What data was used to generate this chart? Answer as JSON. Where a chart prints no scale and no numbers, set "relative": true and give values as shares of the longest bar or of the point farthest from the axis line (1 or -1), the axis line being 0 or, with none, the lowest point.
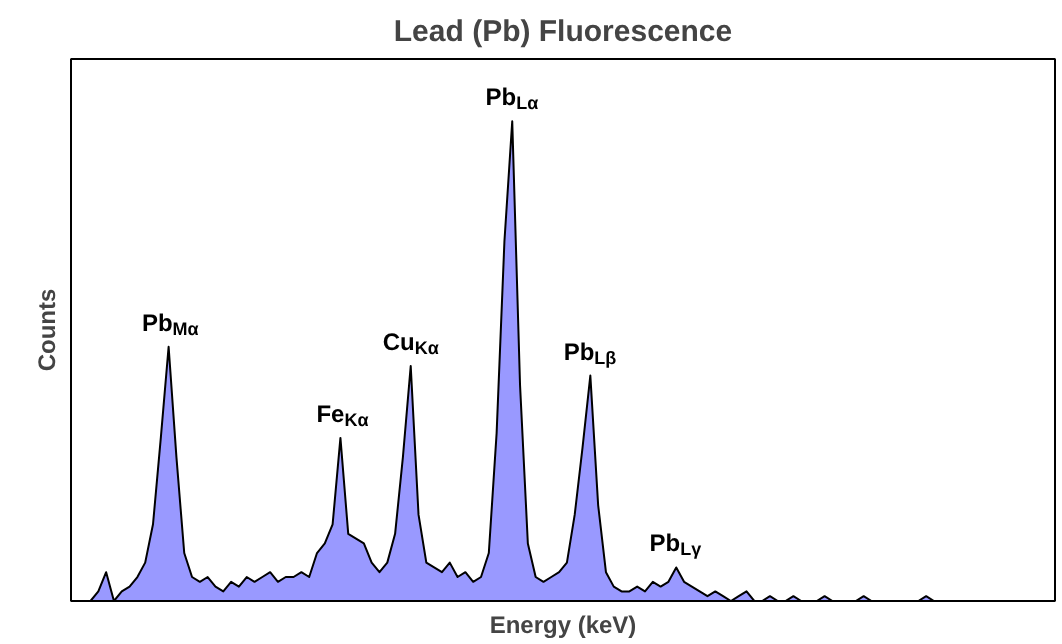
{
  "chart_data": {
    "type": "area",
    "title": "Lead (Pb) Fluorescence",
    "xlabel": "Energy (keV)",
    "ylabel": "Counts",
    "relative": true,
    "tick_labels": false,
    "categories": [
      null,
      null,
      null,
      null,
      null,
      null,
      null,
      null,
      null,
      null,
      null,
      null,
      null,
      null,
      null,
      null,
      null,
      null,
      null,
      null,
      null,
      null,
      null,
      null,
      null,
      null,
      null,
      null,
      null,
      null,
      null,
      null,
      null,
      null,
      null,
      null,
      null,
      null,
      null,
      null,
      null,
      null,
      null,
      null,
      null,
      null,
      null,
      null,
      null,
      null,
      null,
      null,
      null,
      null,
      null,
      null,
      null,
      null,
      null,
      null,
      null,
      null,
      null,
      null,
      null,
      null,
      null,
      null,
      null,
      null,
      null,
      null,
      null,
      null,
      null,
      null,
      null,
      null,
      null,
      null,
      null,
      null,
      null,
      null,
      null,
      null,
      null,
      null,
      null,
      null,
      null,
      null,
      null,
      null,
      null,
      null,
      null,
      null,
      null,
      null,
      null,
      null,
      null,
      null,
      null,
      null,
      null,
      null,
      null,
      null,
      null,
      null,
      null,
      null,
      null,
      null,
      null,
      null,
      null,
      null,
      null,
      null,
      null,
      null,
      null,
      null
    ],
    "series": [
      {
        "color": "#9999ff",
        "values": [
          0.0,
          0.0,
          0.0,
          0.02,
          0.06,
          0.0,
          0.02,
          0.03,
          0.05,
          0.08,
          0.16,
          0.34,
          0.53,
          0.3,
          0.1,
          0.05,
          0.04,
          0.05,
          0.03,
          0.02,
          0.04,
          0.03,
          0.05,
          0.04,
          0.05,
          0.06,
          0.04,
          0.05,
          0.05,
          0.06,
          0.05,
          0.1,
          0.12,
          0.16,
          0.34,
          0.14,
          0.13,
          0.12,
          0.08,
          0.06,
          0.08,
          0.14,
          0.3,
          0.49,
          0.18,
          0.08,
          0.07,
          0.06,
          0.08,
          0.05,
          0.06,
          0.04,
          0.05,
          0.1,
          0.35,
          0.75,
          1.0,
          0.45,
          0.12,
          0.05,
          0.04,
          0.05,
          0.06,
          0.08,
          0.18,
          0.32,
          0.47,
          0.2,
          0.06,
          0.03,
          0.02,
          0.02,
          0.03,
          0.02,
          0.04,
          0.03,
          0.04,
          0.07,
          0.04,
          0.03,
          0.02,
          0.01,
          0.02,
          0.01,
          0.0,
          0.01,
          0.02,
          0.0,
          0.0,
          0.01,
          0.0,
          0.0,
          0.01,
          0.0,
          0.0,
          0.0,
          0.01,
          0.0,
          0.0,
          0.0,
          0.0,
          0.01,
          0.0,
          0.0,
          0.0,
          0.0,
          0.0,
          0.0,
          0.0,
          0.01,
          0.0,
          0.0,
          0.0,
          0.0,
          0.0,
          0.0,
          0.0,
          0.0,
          0.0,
          0.0,
          0.0,
          0.0,
          0.0,
          0.0,
          0.0,
          0.0
        ]
      }
    ],
    "annotations": [
      "Pb$_{Mα}$",
      "Fe$_{Kα}$",
      "Cu$_{Kα}$",
      "Pb$_{Lα}$",
      "Pb$_{Lβ}$",
      "Pb$_{Lγ}$"
    ]
  }
}
